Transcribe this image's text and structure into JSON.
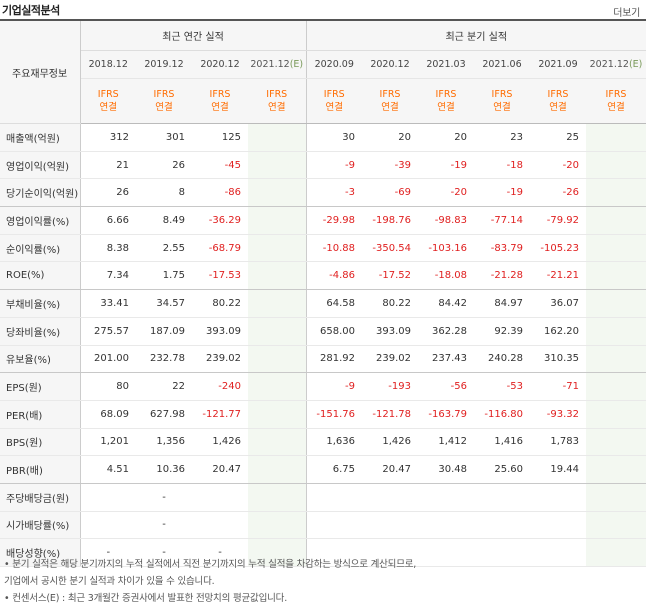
{
  "title": "기업실적분석",
  "more_link": "더보기",
  "header": {
    "corner": "주요재무정보",
    "annual_group": "최근 연간 실적",
    "quarter_group": "최근 분기 실적",
    "annual_periods": [
      "2018.12",
      "2019.12",
      "2020.12",
      "2021.12"
    ],
    "quarter_periods": [
      "2020.09",
      "2020.12",
      "2021.03",
      "2021.06",
      "2021.09",
      "2021.12"
    ],
    "estimate_mark": "(E)",
    "ifrs": "IFRS",
    "consolidated": "연결"
  },
  "rows": [
    {
      "label": "매출액(억원)",
      "values": [
        "312",
        "301",
        "125",
        "",
        "30",
        "20",
        "20",
        "23",
        "25",
        ""
      ]
    },
    {
      "label": "영업이익(억원)",
      "values": [
        "21",
        "26",
        "-45",
        "",
        "-9",
        "-39",
        "-19",
        "-18",
        "-20",
        ""
      ]
    },
    {
      "label": "당기순이익(억원)",
      "values": [
        "26",
        "8",
        "-86",
        "",
        "-3",
        "-69",
        "-20",
        "-19",
        "-26",
        ""
      ]
    },
    {
      "label": "영업이익률(%)",
      "values": [
        "6.66",
        "8.49",
        "-36.29",
        "",
        "-29.98",
        "-198.76",
        "-98.83",
        "-77.14",
        "-79.92",
        ""
      ]
    },
    {
      "label": "순이익률(%)",
      "values": [
        "8.38",
        "2.55",
        "-68.79",
        "",
        "-10.88",
        "-350.54",
        "-103.16",
        "-83.79",
        "-105.23",
        ""
      ]
    },
    {
      "label": "ROE(%)",
      "values": [
        "7.34",
        "1.75",
        "-17.53",
        "",
        "-4.86",
        "-17.52",
        "-18.08",
        "-21.28",
        "-21.21",
        ""
      ]
    },
    {
      "label": "부채비율(%)",
      "values": [
        "33.41",
        "34.57",
        "80.22",
        "",
        "64.58",
        "80.22",
        "84.42",
        "84.97",
        "36.07",
        ""
      ]
    },
    {
      "label": "당좌비율(%)",
      "values": [
        "275.57",
        "187.09",
        "393.09",
        "",
        "658.00",
        "393.09",
        "362.28",
        "92.39",
        "162.20",
        ""
      ]
    },
    {
      "label": "유보율(%)",
      "values": [
        "201.00",
        "232.78",
        "239.02",
        "",
        "281.92",
        "239.02",
        "237.43",
        "240.28",
        "310.35",
        ""
      ]
    },
    {
      "label": "EPS(원)",
      "values": [
        "80",
        "22",
        "-240",
        "",
        "-9",
        "-193",
        "-56",
        "-53",
        "-71",
        ""
      ]
    },
    {
      "label": "PER(배)",
      "values": [
        "68.09",
        "627.98",
        "-121.77",
        "",
        "-151.76",
        "-121.78",
        "-163.79",
        "-116.80",
        "-93.32",
        ""
      ]
    },
    {
      "label": "BPS(원)",
      "values": [
        "1,201",
        "1,356",
        "1,426",
        "",
        "1,636",
        "1,426",
        "1,412",
        "1,416",
        "1,783",
        ""
      ]
    },
    {
      "label": "PBR(배)",
      "values": [
        "4.51",
        "10.36",
        "20.47",
        "",
        "6.75",
        "20.47",
        "30.48",
        "25.60",
        "19.44",
        ""
      ]
    },
    {
      "label": "주당배당금(원)",
      "values": [
        "",
        "-",
        "",
        "",
        "",
        "",
        "",
        "",
        "",
        ""
      ]
    },
    {
      "label": "시가배당률(%)",
      "values": [
        "",
        "-",
        "",
        "",
        "",
        "",
        "",
        "",
        "",
        ""
      ]
    },
    {
      "label": "배당성향(%)",
      "values": [
        "-",
        "-",
        "-",
        "",
        "",
        "",
        "",
        "",
        "",
        ""
      ]
    }
  ],
  "notes": [
    "• 분기 실적은 해당 분기까지의 누적 실적에서 직전 분기까지의 누적 실적을 차감하는 방식으로 계산되므로,",
    "   기업에서 공시한 분기 실적과 차이가 있을 수 있습니다.",
    "• 컨센서스(E) : 최근 3개월간 증권사에서 발표한 전망치의 평균값입니다."
  ],
  "colors": {
    "negative": "#e02020",
    "ifrs_orange": "#ff6c00",
    "estimate_bg": "#f3f8f1",
    "estimate_mark": "#7a9a5a"
  }
}
